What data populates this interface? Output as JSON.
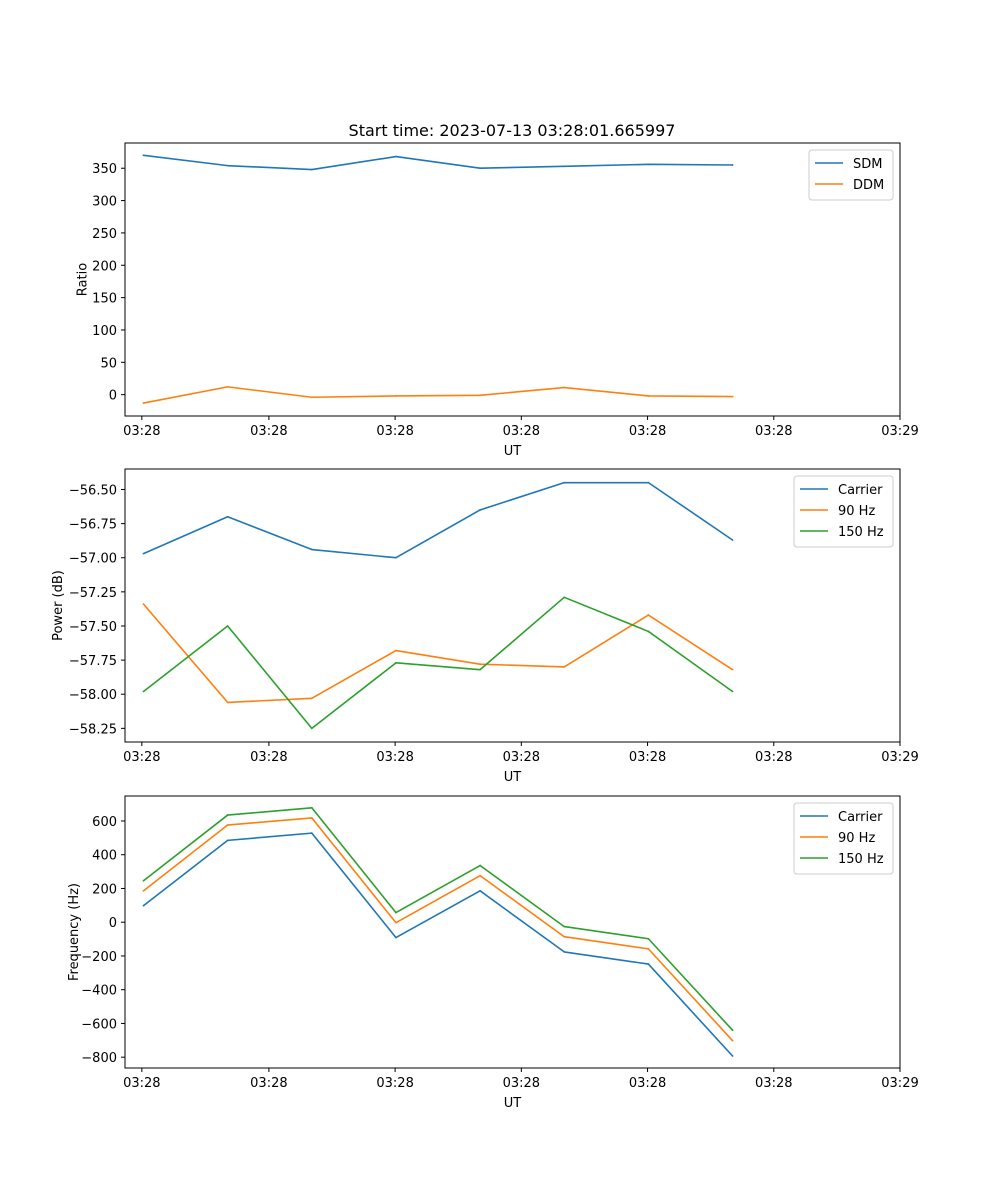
{
  "figure_title": "Start time: 2023-07-13 03:28:01.665997",
  "colors": {
    "blue": "#1f77b4",
    "orange": "#ff7f0e",
    "green": "#2ca02c"
  },
  "chart_data": [
    {
      "type": "line",
      "title": "Start time: 2023-07-13 03:28:01.665997",
      "xlabel": "UT",
      "ylabel": "Ratio",
      "x": [
        1,
        2,
        3,
        4,
        5,
        6,
        7,
        8
      ],
      "xlim": [
        0.78,
        9.99
      ],
      "x_ticks": [
        0.98,
        2.49,
        3.99,
        5.49,
        6.99,
        8.49,
        9.99
      ],
      "x_tick_labels": [
        "03:28",
        "03:28",
        "03:28",
        "03:28",
        "03:28",
        "03:28",
        "03:29"
      ],
      "ylim": [
        -33,
        389
      ],
      "y_ticks": [
        0,
        50,
        100,
        150,
        200,
        250,
        300,
        350
      ],
      "y_tick_labels": [
        "0",
        "50",
        "100",
        "150",
        "200",
        "250",
        "300",
        "350"
      ],
      "legend": "top-right",
      "series": [
        {
          "name": "SDM",
          "color": "#1f77b4",
          "values": [
            370,
            354,
            348,
            368,
            350,
            353,
            356,
            355
          ]
        },
        {
          "name": "DDM",
          "color": "#ff7f0e",
          "values": [
            -13,
            12,
            -4,
            -2,
            -1,
            11,
            -2,
            -3
          ]
        }
      ]
    },
    {
      "type": "line",
      "title": "",
      "xlabel": "UT",
      "ylabel": "Power (dB)",
      "x": [
        1,
        2,
        3,
        4,
        5,
        6,
        7,
        8
      ],
      "xlim": [
        0.78,
        9.99
      ],
      "x_ticks": [
        0.98,
        2.49,
        3.99,
        5.49,
        6.99,
        8.49,
        9.99
      ],
      "x_tick_labels": [
        "03:28",
        "03:28",
        "03:28",
        "03:28",
        "03:28",
        "03:28",
        "03:29"
      ],
      "ylim": [
        -58.35,
        -56.35
      ],
      "y_ticks": [
        -58.25,
        -58.0,
        -57.75,
        -57.5,
        -57.25,
        -57.0,
        -56.75,
        -56.5
      ],
      "y_tick_labels": [
        "−58.25",
        "−58.00",
        "−57.75",
        "−57.50",
        "−57.25",
        "−57.00",
        "−56.75",
        "−56.50"
      ],
      "legend": "top-right",
      "series": [
        {
          "name": "Carrier",
          "color": "#1f77b4",
          "values": [
            -56.97,
            -56.7,
            -56.94,
            -57.0,
            -56.65,
            -56.45,
            -56.45,
            -56.87
          ]
        },
        {
          "name": "90 Hz",
          "color": "#ff7f0e",
          "values": [
            -57.34,
            -58.06,
            -58.03,
            -57.68,
            -57.78,
            -57.8,
            -57.42,
            -57.82
          ]
        },
        {
          "name": "150 Hz",
          "color": "#2ca02c",
          "values": [
            -57.98,
            -57.5,
            -58.25,
            -57.77,
            -57.82,
            -57.29,
            -57.54,
            -57.98
          ]
        }
      ]
    },
    {
      "type": "line",
      "title": "",
      "xlabel": "UT",
      "ylabel": "Frequency (Hz)",
      "x": [
        1,
        2,
        3,
        4,
        5,
        6,
        7,
        8
      ],
      "xlim": [
        0.78,
        9.99
      ],
      "x_ticks": [
        0.98,
        2.49,
        3.99,
        5.49,
        6.99,
        8.49,
        9.99
      ],
      "x_tick_labels": [
        "03:28",
        "03:28",
        "03:28",
        "03:28",
        "03:28",
        "03:28",
        "03:29"
      ],
      "ylim": [
        -864,
        748
      ],
      "y_ticks": [
        -800,
        -600,
        -400,
        -200,
        0,
        200,
        400,
        600
      ],
      "y_tick_labels": [
        "−800",
        "−600",
        "−400",
        "−200",
        "0",
        "200",
        "400",
        "600"
      ],
      "legend": "top-right",
      "series": [
        {
          "name": "Carrier",
          "color": "#1f77b4",
          "values": [
            98,
            485,
            528,
            -91,
            186,
            -176,
            -248,
            -793
          ]
        },
        {
          "name": "90 Hz",
          "color": "#ff7f0e",
          "values": [
            186,
            576,
            618,
            -3,
            276,
            -86,
            -158,
            -702
          ]
        },
        {
          "name": "150 Hz",
          "color": "#2ca02c",
          "values": [
            246,
            635,
            678,
            57,
            336,
            -26,
            -98,
            -640
          ]
        }
      ]
    }
  ]
}
